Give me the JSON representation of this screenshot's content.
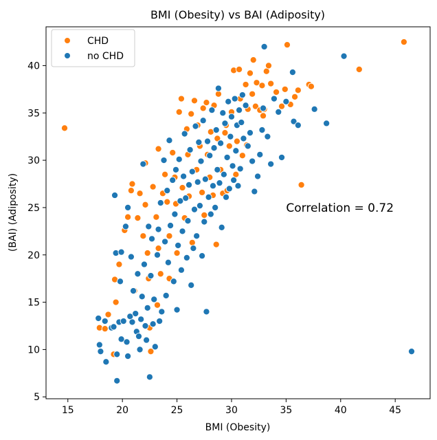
{
  "chart_data": {
    "type": "scatter",
    "title": "BMI (Obesity) vs BAI (Adiposity)",
    "xlabel": "BMI (Obesity)",
    "ylabel": "(BAI) (Adiposity)",
    "xlim": [
      13.0,
      48.2
    ],
    "ylim": [
      4.8,
      44.1
    ],
    "xticks": [
      15,
      20,
      25,
      30,
      35,
      40,
      45
    ],
    "yticks": [
      5,
      10,
      15,
      20,
      25,
      30,
      35,
      40
    ],
    "grid": false,
    "legend_position": "top-left",
    "annotations": [
      {
        "text": "Correlation = 0.72",
        "x": 35.0,
        "y": 25.0
      }
    ],
    "series": [
      {
        "name": "CHD",
        "color": "#ff7f0e",
        "points": [
          [
            14.7,
            33.4
          ],
          [
            17.9,
            12.3
          ],
          [
            18.4,
            12.2
          ],
          [
            18.7,
            13.7
          ],
          [
            19.2,
            9.5
          ],
          [
            19.3,
            17.4
          ],
          [
            19.4,
            15.0
          ],
          [
            19.7,
            19.0
          ],
          [
            20.2,
            22.6
          ],
          [
            20.5,
            24.0
          ],
          [
            20.8,
            26.8
          ],
          [
            20.9,
            27.5
          ],
          [
            21.1,
            16.2
          ],
          [
            21.4,
            23.9
          ],
          [
            21.6,
            26.5
          ],
          [
            21.9,
            22.0
          ],
          [
            22.1,
            25.3
          ],
          [
            22.1,
            29.7
          ],
          [
            22.3,
            20.2
          ],
          [
            22.4,
            17.5
          ],
          [
            22.5,
            12.3
          ],
          [
            22.6,
            9.8
          ],
          [
            22.8,
            27.2
          ],
          [
            23.1,
            24.0
          ],
          [
            23.2,
            14.7
          ],
          [
            23.3,
            31.2
          ],
          [
            23.3,
            20.7
          ],
          [
            23.5,
            18.0
          ],
          [
            23.7,
            26.5
          ],
          [
            23.9,
            28.5
          ],
          [
            24.1,
            25.6
          ],
          [
            24.3,
            22.0
          ],
          [
            24.3,
            17.5
          ],
          [
            24.6,
            30.8
          ],
          [
            24.8,
            28.2
          ],
          [
            24.9,
            25.4
          ],
          [
            25.0,
            20.2
          ],
          [
            25.2,
            35.1
          ],
          [
            25.4,
            36.5
          ],
          [
            25.5,
            27.1
          ],
          [
            25.7,
            23.9
          ],
          [
            25.9,
            33.3
          ],
          [
            26.0,
            30.6
          ],
          [
            26.1,
            26.2
          ],
          [
            26.3,
            34.9
          ],
          [
            26.4,
            21.3
          ],
          [
            26.6,
            36.3
          ],
          [
            26.8,
            29.0
          ],
          [
            26.9,
            33.7
          ],
          [
            27.1,
            31.5
          ],
          [
            27.3,
            26.6
          ],
          [
            27.4,
            35.5
          ],
          [
            27.5,
            24.2
          ],
          [
            27.7,
            36.1
          ],
          [
            27.8,
            30.6
          ],
          [
            28.0,
            28.2
          ],
          [
            28.1,
            33.0
          ],
          [
            28.3,
            26.3
          ],
          [
            28.4,
            35.8
          ],
          [
            28.6,
            21.1
          ],
          [
            28.7,
            32.3
          ],
          [
            28.8,
            37.0
          ],
          [
            29.0,
            29.0
          ],
          [
            29.2,
            26.5
          ],
          [
            29.4,
            32.9
          ],
          [
            29.5,
            33.7
          ],
          [
            29.6,
            26.8
          ],
          [
            29.8,
            31.5
          ],
          [
            30.0,
            35.1
          ],
          [
            30.2,
            39.5
          ],
          [
            30.4,
            28.5
          ],
          [
            30.5,
            32.0
          ],
          [
            30.7,
            39.6
          ],
          [
            30.8,
            36.5
          ],
          [
            31.0,
            30.5
          ],
          [
            31.3,
            38.0
          ],
          [
            31.4,
            31.6
          ],
          [
            31.5,
            35.4
          ],
          [
            31.7,
            39.2
          ],
          [
            31.9,
            37.0
          ],
          [
            32.0,
            40.6
          ],
          [
            32.2,
            35.7
          ],
          [
            32.3,
            38.2
          ],
          [
            32.6,
            35.3
          ],
          [
            32.8,
            37.9
          ],
          [
            32.9,
            34.7
          ],
          [
            33.0,
            35.4
          ],
          [
            33.2,
            39.4
          ],
          [
            33.4,
            40.0
          ],
          [
            33.6,
            38.1
          ],
          [
            34.1,
            37.2
          ],
          [
            34.6,
            35.7
          ],
          [
            34.9,
            37.5
          ],
          [
            35.1,
            42.2
          ],
          [
            35.4,
            35.9
          ],
          [
            35.8,
            36.7
          ],
          [
            36.1,
            37.4
          ],
          [
            36.4,
            27.4
          ],
          [
            37.1,
            38.0
          ],
          [
            37.3,
            37.8
          ],
          [
            41.7,
            39.6
          ],
          [
            45.8,
            42.5
          ]
        ]
      },
      {
        "name": "no CHD",
        "color": "#1f77b4",
        "points": [
          [
            17.8,
            13.3
          ],
          [
            17.9,
            10.5
          ],
          [
            18.0,
            9.8
          ],
          [
            18.4,
            13.0
          ],
          [
            18.5,
            8.7
          ],
          [
            19.0,
            12.3
          ],
          [
            19.2,
            12.4
          ],
          [
            19.3,
            26.3
          ],
          [
            19.4,
            20.2
          ],
          [
            19.5,
            6.7
          ],
          [
            19.5,
            9.5
          ],
          [
            19.7,
            12.9
          ],
          [
            19.8,
            17.2
          ],
          [
            19.9,
            20.3
          ],
          [
            19.9,
            11.1
          ],
          [
            20.1,
            13.0
          ],
          [
            20.3,
            23.0
          ],
          [
            20.4,
            10.8
          ],
          [
            20.5,
            25.0
          ],
          [
            20.5,
            9.3
          ],
          [
            20.7,
            13.5
          ],
          [
            20.8,
            19.8
          ],
          [
            20.9,
            12.9
          ],
          [
            21.0,
            16.2
          ],
          [
            21.2,
            13.8
          ],
          [
            21.3,
            11.9
          ],
          [
            21.4,
            18.0
          ],
          [
            21.5,
            11.4
          ],
          [
            21.6,
            10.0
          ],
          [
            21.7,
            13.2
          ],
          [
            21.8,
            15.6
          ],
          [
            21.9,
            29.6
          ],
          [
            22.0,
            19.0
          ],
          [
            22.1,
            12.5
          ],
          [
            22.2,
            11.0
          ],
          [
            22.3,
            14.4
          ],
          [
            22.4,
            23.0
          ],
          [
            22.5,
            7.1
          ],
          [
            22.6,
            17.8
          ],
          [
            22.7,
            21.7
          ],
          [
            22.8,
            12.7
          ],
          [
            22.9,
            15.3
          ],
          [
            23.0,
            10.3
          ],
          [
            23.2,
            20.0
          ],
          [
            23.3,
            22.7
          ],
          [
            23.4,
            13.0
          ],
          [
            23.5,
            25.5
          ],
          [
            23.6,
            14.0
          ],
          [
            23.8,
            30.0
          ],
          [
            23.9,
            21.4
          ],
          [
            24.0,
            15.7
          ],
          [
            24.1,
            26.8
          ],
          [
            24.2,
            19.2
          ],
          [
            24.3,
            32.1
          ],
          [
            24.4,
            23.1
          ],
          [
            24.6,
            27.9
          ],
          [
            24.7,
            17.2
          ],
          [
            24.8,
            24.3
          ],
          [
            24.9,
            29.0
          ],
          [
            25.0,
            14.2
          ],
          [
            25.1,
            21.0
          ],
          [
            25.2,
            30.1
          ],
          [
            25.3,
            25.7
          ],
          [
            25.4,
            18.4
          ],
          [
            25.5,
            22.5
          ],
          [
            25.6,
            28.3
          ],
          [
            25.7,
            32.8
          ],
          [
            25.8,
            26.0
          ],
          [
            25.9,
            19.7
          ],
          [
            26.0,
            23.6
          ],
          [
            26.1,
            27.4
          ],
          [
            26.2,
            31.1
          ],
          [
            26.3,
            16.8
          ],
          [
            26.4,
            28.8
          ],
          [
            26.5,
            20.7
          ],
          [
            26.6,
            24.8
          ],
          [
            26.7,
            33.6
          ],
          [
            26.8,
            22.0
          ],
          [
            26.9,
            27.7
          ],
          [
            27.0,
            31.9
          ],
          [
            27.1,
            25.2
          ],
          [
            27.2,
            29.9
          ],
          [
            27.3,
            19.9
          ],
          [
            27.4,
            34.2
          ],
          [
            27.5,
            23.5
          ],
          [
            27.6,
            28.0
          ],
          [
            27.7,
            14.0
          ],
          [
            27.8,
            32.0
          ],
          [
            27.9,
            26.1
          ],
          [
            28.0,
            30.5
          ],
          [
            28.1,
            24.3
          ],
          [
            28.2,
            35.3
          ],
          [
            28.3,
            27.3
          ],
          [
            28.4,
            31.3
          ],
          [
            28.5,
            25.0
          ],
          [
            28.6,
            33.2
          ],
          [
            28.7,
            29.0
          ],
          [
            28.8,
            37.6
          ],
          [
            28.9,
            27.6
          ],
          [
            29.0,
            31.8
          ],
          [
            29.1,
            22.9
          ],
          [
            29.2,
            35.0
          ],
          [
            29.3,
            28.5
          ],
          [
            29.4,
            33.9
          ],
          [
            29.5,
            26.1
          ],
          [
            29.6,
            30.3
          ],
          [
            29.7,
            36.2
          ],
          [
            29.8,
            27.0
          ],
          [
            29.9,
            32.5
          ],
          [
            30.0,
            34.6
          ],
          [
            30.1,
            29.4
          ],
          [
            30.2,
            27.9
          ],
          [
            30.3,
            36.5
          ],
          [
            30.4,
            31.0
          ],
          [
            30.5,
            33.7
          ],
          [
            30.6,
            27.3
          ],
          [
            30.7,
            35.3
          ],
          [
            30.8,
            29.1
          ],
          [
            30.9,
            34.0
          ],
          [
            31.0,
            36.9
          ],
          [
            31.1,
            32.3
          ],
          [
            31.3,
            35.8
          ],
          [
            31.5,
            31.5
          ],
          [
            31.7,
            32.9
          ],
          [
            31.9,
            29.9
          ],
          [
            32.1,
            26.7
          ],
          [
            32.4,
            28.3
          ],
          [
            32.6,
            30.6
          ],
          [
            32.8,
            33.2
          ],
          [
            32.9,
            35.5
          ],
          [
            33.0,
            42.0
          ],
          [
            33.3,
            32.5
          ],
          [
            33.6,
            29.6
          ],
          [
            33.9,
            36.5
          ],
          [
            34.3,
            35.1
          ],
          [
            34.6,
            30.3
          ],
          [
            35.0,
            36.2
          ],
          [
            35.6,
            39.3
          ],
          [
            35.7,
            34.1
          ],
          [
            36.1,
            33.7
          ],
          [
            37.6,
            35.4
          ],
          [
            38.7,
            33.9
          ],
          [
            40.3,
            41.0
          ],
          [
            46.5,
            9.8
          ]
        ]
      }
    ]
  }
}
